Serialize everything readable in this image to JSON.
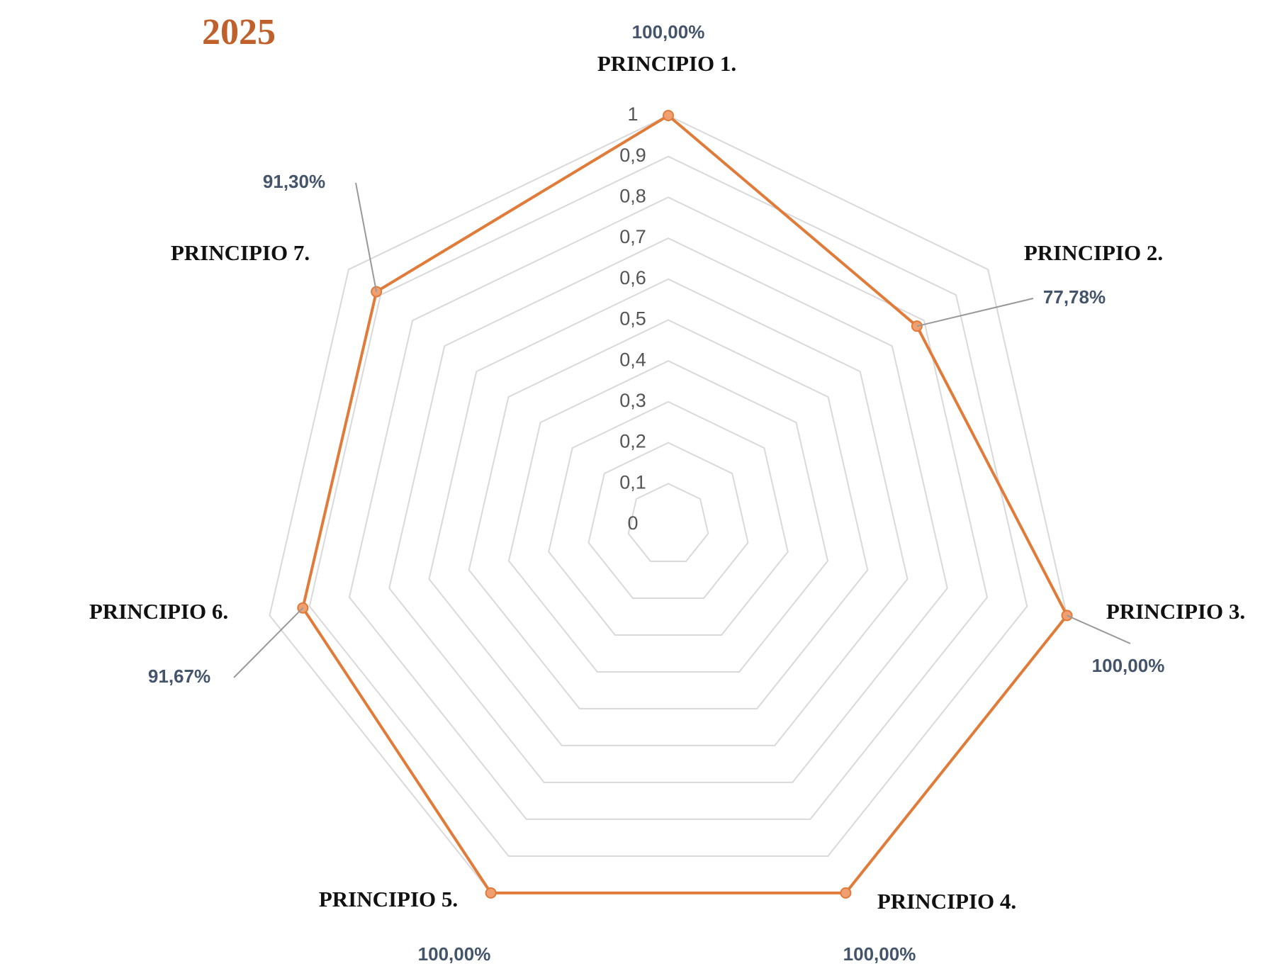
{
  "chart_data": {
    "type": "radar",
    "title": "2025",
    "categories": [
      "PRINCIPIO 1.",
      "PRINCIPIO 2.",
      "PRINCIPIO 3.",
      "PRINCIPIO 4.",
      "PRINCIPIO 5.",
      "PRINCIPIO 6.",
      "PRINCIPIO 7."
    ],
    "series": [
      {
        "name": "2025",
        "color": "#e07b39",
        "values": [
          1,
          0.7778,
          1,
          1,
          1,
          0.9167,
          0.913
        ],
        "value_labels": [
          "100,00%",
          "77,78%",
          "100,00%",
          "100,00%",
          "100,00%",
          "91,67%",
          "91,30%"
        ]
      }
    ],
    "rlim": [
      0,
      1
    ],
    "rticks": [
      0,
      {
        "value": 0.1,
        "label": "0,1"
      },
      {
        "value": 0.2,
        "label": "0,2"
      },
      {
        "value": 0.3,
        "label": "0,3"
      },
      {
        "value": 0.4,
        "label": "0,4"
      },
      {
        "value": 0.5,
        "label": "0,5"
      },
      {
        "value": 0.6,
        "label": "0,6"
      },
      {
        "value": 0.7,
        "label": "0,7"
      },
      {
        "value": 0.8,
        "label": "0,8"
      },
      {
        "value": 0.9,
        "label": "0,9"
      },
      1
    ],
    "grid": true
  }
}
